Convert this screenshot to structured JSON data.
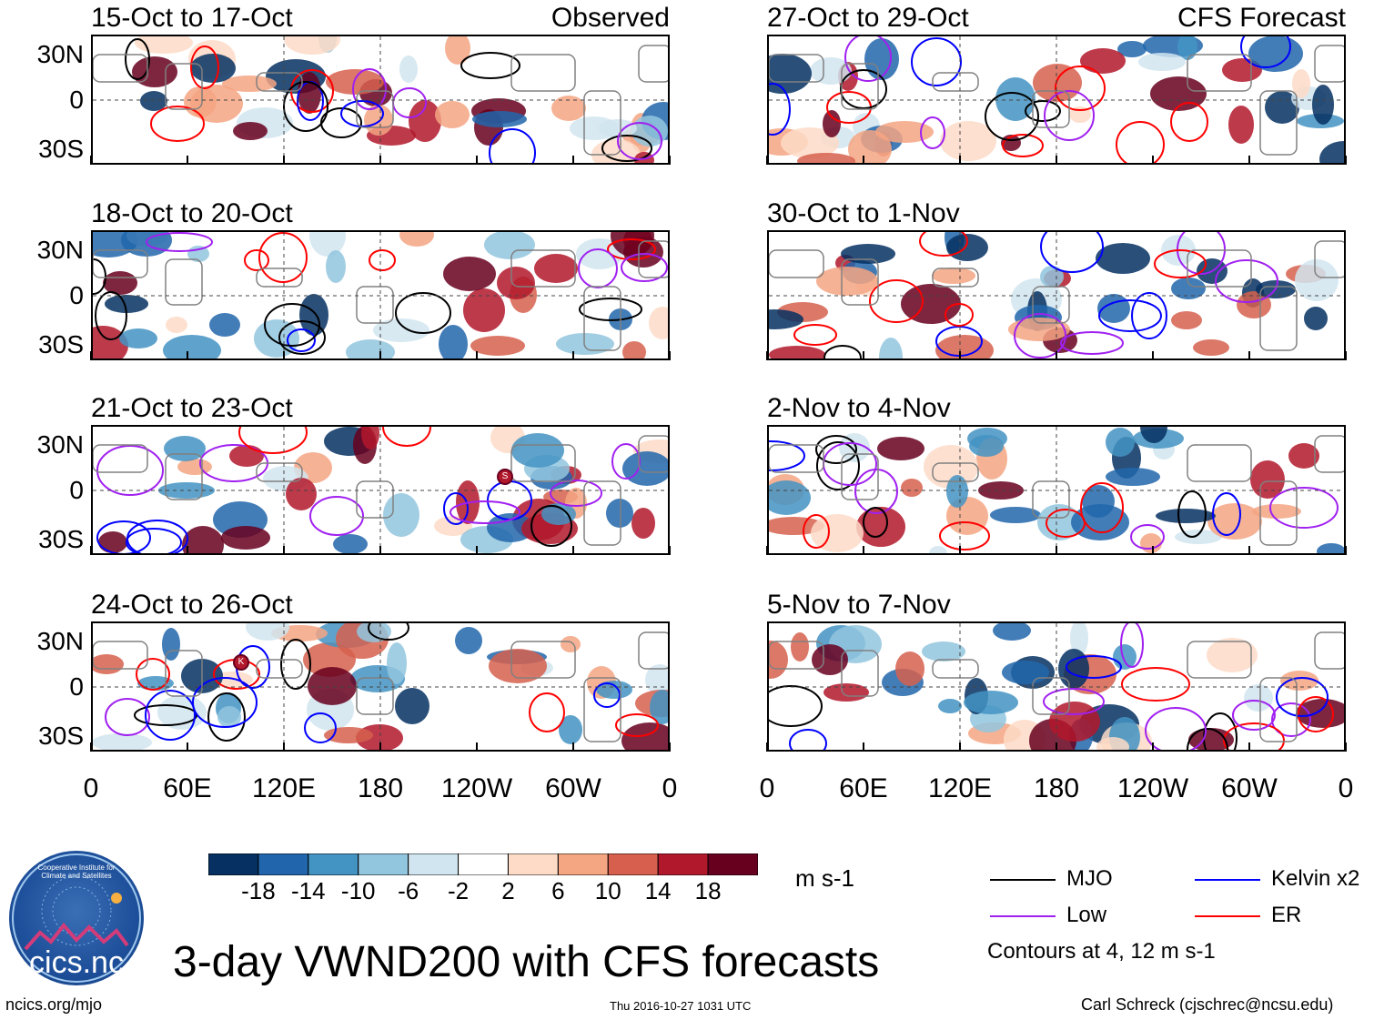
{
  "panels": [
    {
      "title": "15-Oct to 17-Oct",
      "tag": "Observed",
      "seed": 1
    },
    {
      "title": "27-Oct to 29-Oct",
      "tag": "CFS Forecast",
      "seed": 2
    },
    {
      "title": "18-Oct to 20-Oct",
      "tag": "",
      "seed": 3
    },
    {
      "title": "30-Oct to 1-Nov",
      "tag": "",
      "seed": 4
    },
    {
      "title": "21-Oct to 23-Oct",
      "tag": "",
      "seed": 5
    },
    {
      "title": "2-Nov to 4-Nov",
      "tag": "",
      "seed": 6
    },
    {
      "title": "24-Oct to 26-Oct",
      "tag": "",
      "seed": 7
    },
    {
      "title": "5-Nov to 7-Nov",
      "tag": "",
      "seed": 8
    }
  ],
  "lat_labels": [
    "30N",
    "0",
    "30S"
  ],
  "lon_labels": [
    "0",
    "60E",
    "120E",
    "180",
    "120W",
    "60W",
    "0"
  ],
  "colorbar": {
    "ticks": [
      "-18",
      "-14",
      "-10",
      "-6",
      "-2",
      "2",
      "6",
      "10",
      "14",
      "18"
    ],
    "colors": [
      "#053061",
      "#2166ac",
      "#4393c3",
      "#92c5de",
      "#d1e5f0",
      "#ffffff",
      "#fddbc7",
      "#f4a582",
      "#d6604d",
      "#b2182b",
      "#67001f"
    ],
    "units": "m s-1"
  },
  "legend": {
    "items": [
      {
        "label": "MJO",
        "color": "#000000"
      },
      {
        "label": "Kelvin x2",
        "color": "#0000ff"
      },
      {
        "label": "Low",
        "color": "#a020f0"
      },
      {
        "label": "ER",
        "color": "#ff0000"
      }
    ],
    "note": "Contours at 4, 12 m s-1"
  },
  "logo_text": "cics.nc",
  "logo_ring_text": "Cooperative Institute for Climate and Satellites",
  "main_title": "3-day VWND200 with CFS forecasts",
  "footer": {
    "left": "ncics.org/mjo",
    "center": "Thu 2016-10-27 1031 UTC",
    "right": "Carl Schreck (cjschrec@ncsu.edu)"
  },
  "markers": [
    {
      "panel": 4,
      "label": "S"
    },
    {
      "panel": 6,
      "label": "K"
    }
  ]
}
